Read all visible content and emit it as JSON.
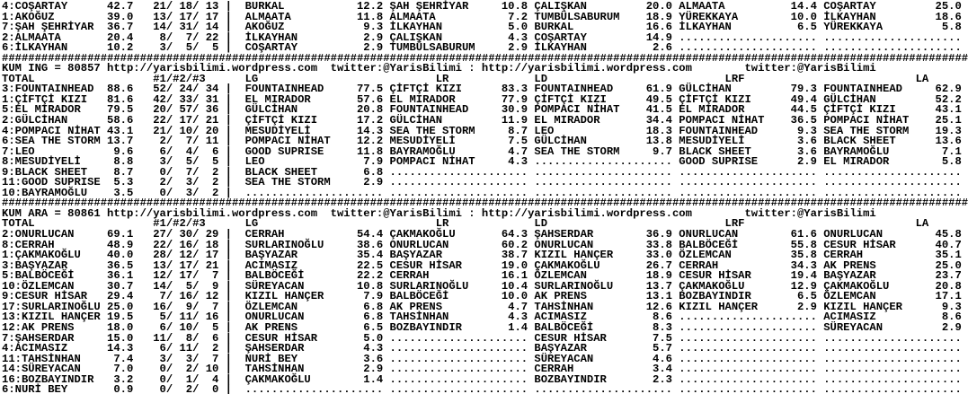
{
  "page": {
    "background": "#ffffff",
    "text_color": "#000000",
    "divider_char": "#"
  },
  "branding": {
    "url": "http://yarisbilimi.wordpress.com",
    "twitter": "twitter:@YarisBilimi",
    "separator": ":"
  },
  "column_headers": {
    "total": "TOTAL",
    "counts": "#1/#2/#3",
    "columns": [
      "LG",
      "LR",
      "LD",
      "LRF",
      "LA"
    ]
  },
  "sections": [
    {
      "name": "previous-race-partial",
      "title": null,
      "rows": [
        {
          "rank": "4",
          "name": "COŞARTAY",
          "total": "42.7",
          "counts": [
            "21",
            "18",
            "13"
          ],
          "lg": {
            "name": "BURKAL",
            "value": "12.2"
          },
          "lr": {
            "name": "ŞAH ŞEHRİYAR",
            "value": "10.8"
          },
          "ld": {
            "name": "ÇALIŞKAN",
            "value": "20.0"
          },
          "lrf": {
            "name": "ALMAATA",
            "value": "14.4"
          },
          "la": {
            "name": "COŞARTAY",
            "value": "25.0"
          }
        },
        {
          "rank": "1",
          "name": "AKOĞUZ",
          "total": "39.0",
          "counts": [
            "13",
            "17",
            "17"
          ],
          "lg": {
            "name": "ALMAATA",
            "value": "11.8"
          },
          "lr": {
            "name": "ALMAATA",
            "value": "7.2"
          },
          "ld": {
            "name": "TUMBÜLSABURUM",
            "value": "18.9"
          },
          "lrf": {
            "name": "YÜREKKAYA",
            "value": "10.0"
          },
          "la": {
            "name": "İLKAYHAN",
            "value": "18.6"
          }
        },
        {
          "rank": "7",
          "name": "ŞAH ŞEHRİYAR",
          "total": "36.7",
          "counts": [
            "14",
            "31",
            "14"
          ],
          "lg": {
            "name": "AKOĞUZ",
            "value": "9.3"
          },
          "lr": {
            "name": "İLKAYHAN",
            "value": "5.0"
          },
          "ld": {
            "name": "BURKAL",
            "value": "16.6"
          },
          "lrf": {
            "name": "İLKAYHAN",
            "value": "6.5"
          },
          "la": {
            "name": "YÜREKKAYA",
            "value": "5.8"
          }
        },
        {
          "rank": "2",
          "name": "ALMAATA",
          "total": "20.4",
          "counts": [
            "8",
            "7",
            "22"
          ],
          "lg": {
            "name": "İLKAYHAN",
            "value": "2.9"
          },
          "lr": {
            "name": "ÇALIŞKAN",
            "value": "4.3"
          },
          "ld": {
            "name": "COŞARTAY",
            "value": "14.9"
          },
          "lrf": null,
          "la": null
        },
        {
          "rank": "6",
          "name": "İLKAYHAN",
          "total": "10.2",
          "counts": [
            "3",
            "5",
            "5"
          ],
          "lg": {
            "name": "COŞARTAY",
            "value": "2.9"
          },
          "lr": {
            "name": "TUMBÜLSABURUM",
            "value": "2.9"
          },
          "ld": {
            "name": "İLKAYHAN",
            "value": "2.6"
          },
          "lrf": null,
          "la": null
        }
      ]
    },
    {
      "name": "kum-ing",
      "title": {
        "label": "KUM ING",
        "code": "80857"
      },
      "rows": [
        {
          "rank": "3",
          "name": "FOUNTAINHEAD",
          "total": "88.6",
          "counts": [
            "52",
            "24",
            "34"
          ],
          "lg": {
            "name": "FOUNTAINHEAD",
            "value": "77.5"
          },
          "lr": {
            "name": "ÇİFTÇİ KIZI",
            "value": "83.3"
          },
          "ld": {
            "name": "FOUNTAINHEAD",
            "value": "61.9"
          },
          "lrf": {
            "name": "GÜLCİHAN",
            "value": "79.3"
          },
          "la": {
            "name": "FOUNTAINHEAD",
            "value": "62.9"
          }
        },
        {
          "rank": "1",
          "name": "ÇİFTÇİ KIZI",
          "total": "81.6",
          "counts": [
            "42",
            "33",
            "31"
          ],
          "lg": {
            "name": "EL MIRADOR",
            "value": "57.6"
          },
          "lr": {
            "name": "EL MIRADOR",
            "value": "77.9"
          },
          "ld": {
            "name": "ÇİFTÇİ KIZI",
            "value": "49.5"
          },
          "lrf": {
            "name": "ÇİFTÇİ KIZI",
            "value": "49.4"
          },
          "la": {
            "name": "GÜLCİHAN",
            "value": "52.2"
          }
        },
        {
          "rank": "5",
          "name": "EL MIRADOR",
          "total": "79.5",
          "counts": [
            "20",
            "57",
            "36"
          ],
          "lg": {
            "name": "GÜLCİHAN",
            "value": "20.8"
          },
          "lr": {
            "name": "FOUNTAINHEAD",
            "value": "30.9"
          },
          "ld": {
            "name": "POMPACI NİHAT",
            "value": "41.5"
          },
          "lrf": {
            "name": "EL MIRADOR",
            "value": "44.5"
          },
          "la": {
            "name": "ÇİFTÇİ KIZI",
            "value": "43.1"
          }
        },
        {
          "rank": "2",
          "name": "GÜLCİHAN",
          "total": "58.6",
          "counts": [
            "22",
            "17",
            "21"
          ],
          "lg": {
            "name": "ÇİFTÇİ KIZI",
            "value": "17.2"
          },
          "lr": {
            "name": "GÜLCİHAN",
            "value": "11.9"
          },
          "ld": {
            "name": "EL MIRADOR",
            "value": "34.4"
          },
          "lrf": {
            "name": "POMPACI NİHAT",
            "value": "36.5"
          },
          "la": {
            "name": "POMPACI NİHAT",
            "value": "25.1"
          }
        },
        {
          "rank": "4",
          "name": "POMPACI NİHAT",
          "total": "43.1",
          "counts": [
            "21",
            "10",
            "20"
          ],
          "lg": {
            "name": "MESUDİYELİ",
            "value": "14.3"
          },
          "lr": {
            "name": "SEA THE STORM",
            "value": "8.7"
          },
          "ld": {
            "name": "LEO",
            "value": "18.3"
          },
          "lrf": {
            "name": "FOUNTAINHEAD",
            "value": "9.3"
          },
          "la": {
            "name": "SEA THE STORM",
            "value": "19.3"
          }
        },
        {
          "rank": "6",
          "name": "SEA THE STORM",
          "total": "13.7",
          "counts": [
            "2",
            "7",
            "11"
          ],
          "lg": {
            "name": "POMPACI NİHAT",
            "value": "12.2"
          },
          "lr": {
            "name": "MESUDİYELİ",
            "value": "7.5"
          },
          "ld": {
            "name": "GÜLCİHAN",
            "value": "13.8"
          },
          "lrf": {
            "name": "MESUDİYELİ",
            "value": "3.6"
          },
          "la": {
            "name": "BLACK SHEET",
            "value": "13.6"
          }
        },
        {
          "rank": "7",
          "name": "LEO",
          "total": "9.6",
          "counts": [
            "6",
            "4",
            "6"
          ],
          "lg": {
            "name": "GOOD SUPRISE",
            "value": "11.8"
          },
          "lr": {
            "name": "BAYRAMOĞLU",
            "value": "4.7"
          },
          "ld": {
            "name": "SEA THE STORM",
            "value": "9.7"
          },
          "lrf": {
            "name": "BLACK SHEET",
            "value": "3.6"
          },
          "la": {
            "name": "BAYRAMOĞLU",
            "value": "7.1"
          }
        },
        {
          "rank": "8",
          "name": "MESUDİYELİ",
          "total": "8.8",
          "counts": [
            "3",
            "5",
            "5"
          ],
          "lg": {
            "name": "LEO",
            "value": "7.9"
          },
          "lr": {
            "name": "POMPACI NİHAT",
            "value": "4.3"
          },
          "ld": null,
          "lrf": {
            "name": "GOOD SUPRISE",
            "value": "2.9"
          },
          "la": {
            "name": "EL MIRADOR",
            "value": "5.8"
          }
        },
        {
          "rank": "9",
          "name": "BLACK SHEET",
          "total": "8.7",
          "counts": [
            "0",
            "7",
            "2"
          ],
          "lg": {
            "name": "BLACK SHEET",
            "value": "6.8"
          },
          "lr": null,
          "ld": null,
          "lrf": null,
          "la": null
        },
        {
          "rank": "11",
          "name": "GOOD SUPRISE",
          "total": "5.3",
          "counts": [
            "2",
            "3",
            "2"
          ],
          "lg": {
            "name": "SEA THE STORM",
            "value": "2.9"
          },
          "lr": null,
          "ld": null,
          "lrf": null,
          "la": null
        },
        {
          "rank": "10",
          "name": "BAYRAMOĞLU",
          "total": "3.5",
          "counts": [
            "0",
            "3",
            "2"
          ],
          "lg": null,
          "lr": null,
          "ld": null,
          "lrf": null,
          "la": null
        }
      ]
    },
    {
      "name": "kum-ara",
      "title": {
        "label": "KUM ARA",
        "code": "80861"
      },
      "rows": [
        {
          "rank": "2",
          "name": "ONURLUCAN",
          "total": "69.1",
          "counts": [
            "27",
            "30",
            "29"
          ],
          "lg": {
            "name": "CERRAH",
            "value": "54.4"
          },
          "lr": {
            "name": "ÇAKMAKOĞLU",
            "value": "64.3"
          },
          "ld": {
            "name": "ŞAHSERDAR",
            "value": "36.9"
          },
          "lrf": {
            "name": "ONURLUCAN",
            "value": "61.6"
          },
          "la": {
            "name": "ONURLUCAN",
            "value": "45.8"
          }
        },
        {
          "rank": "8",
          "name": "CERRAH",
          "total": "48.9",
          "counts": [
            "22",
            "16",
            "18"
          ],
          "lg": {
            "name": "SURLARINOĞLU",
            "value": "38.6"
          },
          "lr": {
            "name": "ONURLUCAN",
            "value": "60.2"
          },
          "ld": {
            "name": "ONURLUCAN",
            "value": "33.8"
          },
          "lrf": {
            "name": "BALBÖCEĞİ",
            "value": "55.8"
          },
          "la": {
            "name": "CESUR HİSAR",
            "value": "40.7"
          }
        },
        {
          "rank": "1",
          "name": "ÇAKMAKOĞLU",
          "total": "40.0",
          "counts": [
            "28",
            "12",
            "17"
          ],
          "lg": {
            "name": "BAŞYAZAR",
            "value": "35.4"
          },
          "lr": {
            "name": "BAŞYAZAR",
            "value": "38.7"
          },
          "ld": {
            "name": "KIZIL HANÇER",
            "value": "33.0"
          },
          "lrf": {
            "name": "ÖZLEMCAN",
            "value": "35.8"
          },
          "la": {
            "name": "CERRAH",
            "value": "35.1"
          }
        },
        {
          "rank": "3",
          "name": "BAŞYAZAR",
          "total": "36.5",
          "counts": [
            "13",
            "17",
            "21"
          ],
          "lg": {
            "name": "ACIMASIZ",
            "value": "22.5"
          },
          "lr": {
            "name": "CESUR HİSAR",
            "value": "19.0"
          },
          "ld": {
            "name": "ÇAKMAKOĞLU",
            "value": "26.7"
          },
          "lrf": {
            "name": "CERRAH",
            "value": "34.3"
          },
          "la": {
            "name": "AK PRENS",
            "value": "25.0"
          }
        },
        {
          "rank": "5",
          "name": "BALBÖCEĞİ",
          "total": "36.1",
          "counts": [
            "12",
            "17",
            "7"
          ],
          "lg": {
            "name": "BALBÖCEĞİ",
            "value": "22.2"
          },
          "lr": {
            "name": "CERRAH",
            "value": "16.1"
          },
          "ld": {
            "name": "ÖZLEMCAN",
            "value": "18.9"
          },
          "lrf": {
            "name": "CESUR HİSAR",
            "value": "19.4"
          },
          "la": {
            "name": "BAŞYAZAR",
            "value": "23.7"
          }
        },
        {
          "rank": "10",
          "name": "ÖZLEMCAN",
          "total": "30.7",
          "counts": [
            "14",
            "5",
            "9"
          ],
          "lg": {
            "name": "SÜREYACAN",
            "value": "10.8"
          },
          "lr": {
            "name": "SURLARINOĞLU",
            "value": "10.4"
          },
          "ld": {
            "name": "SURLARINOĞLU",
            "value": "13.7"
          },
          "lrf": {
            "name": "ÇAKMAKOĞLU",
            "value": "12.9"
          },
          "la": {
            "name": "ÇAKMAKOĞLU",
            "value": "20.8"
          }
        },
        {
          "rank": "9",
          "name": "CESUR HİSAR",
          "total": "29.4",
          "counts": [
            "7",
            "16",
            "12"
          ],
          "lg": {
            "name": "KIZIL HANÇER",
            "value": "7.9"
          },
          "lr": {
            "name": "BALBÖCEĞİ",
            "value": "10.0"
          },
          "ld": {
            "name": "AK PRENS",
            "value": "13.1"
          },
          "lrf": {
            "name": "BOZBAYINDIR",
            "value": "6.5"
          },
          "la": {
            "name": "ÖZLEMCAN",
            "value": "17.1"
          }
        },
        {
          "rank": "17",
          "name": "SURLARINOĞLU",
          "total": "25.0",
          "counts": [
            "16",
            "9",
            "7"
          ],
          "lg": {
            "name": "ÖZLEMCAN",
            "value": "6.8"
          },
          "lr": {
            "name": "AK PRENS",
            "value": "4.7"
          },
          "ld": {
            "name": "TAHSİNHAN",
            "value": "12.6"
          },
          "lrf": {
            "name": "KIZIL HANÇER",
            "value": "2.9"
          },
          "la": {
            "name": "KIZIL HANÇER",
            "value": "9.3"
          }
        },
        {
          "rank": "13",
          "name": "KIZIL HANÇER",
          "total": "19.5",
          "counts": [
            "5",
            "11",
            "16"
          ],
          "lg": {
            "name": "ONURLUCAN",
            "value": "6.8"
          },
          "lr": {
            "name": "TAHSİNHAN",
            "value": "4.3"
          },
          "ld": {
            "name": "ACIMASIZ",
            "value": "8.6"
          },
          "lrf": null,
          "la": {
            "name": "ACIMASIZ",
            "value": "8.6"
          }
        },
        {
          "rank": "12",
          "name": "AK PRENS",
          "total": "18.0",
          "counts": [
            "6",
            "10",
            "5"
          ],
          "lg": {
            "name": "AK PRENS",
            "value": "6.5"
          },
          "lr": {
            "name": "BOZBAYINDIR",
            "value": "1.4"
          },
          "ld": {
            "name": "BALBÖCEĞİ",
            "value": "8.3"
          },
          "lrf": null,
          "la": {
            "name": "SÜREYACAN",
            "value": "2.9"
          }
        },
        {
          "rank": "7",
          "name": "ŞAHSERDAR",
          "total": "15.0",
          "counts": [
            "11",
            "8",
            "6"
          ],
          "lg": {
            "name": "CESUR HİSAR",
            "value": "5.0"
          },
          "lr": null,
          "ld": {
            "name": "CESUR HİSAR",
            "value": "7.5"
          },
          "lrf": null,
          "la": null
        },
        {
          "rank": "4",
          "name": "ACIMASIZ",
          "total": "14.3",
          "counts": [
            "6",
            "11",
            "2"
          ],
          "lg": {
            "name": "ŞAHSERDAR",
            "value": "4.3"
          },
          "lr": null,
          "ld": {
            "name": "BAŞYAZAR",
            "value": "5.7"
          },
          "lrf": null,
          "la": null
        },
        {
          "rank": "11",
          "name": "TAHSİNHAN",
          "total": "7.4",
          "counts": [
            "3",
            "3",
            "7"
          ],
          "lg": {
            "name": "NURİ BEY",
            "value": "3.6"
          },
          "lr": null,
          "ld": {
            "name": "SÜREYACAN",
            "value": "4.6"
          },
          "lrf": null,
          "la": null
        },
        {
          "rank": "14",
          "name": "SÜREYACAN",
          "total": "7.0",
          "counts": [
            "0",
            "2",
            "10"
          ],
          "lg": {
            "name": "TAHSİNHAN",
            "value": "2.9"
          },
          "lr": null,
          "ld": {
            "name": "CERRAH",
            "value": "3.4"
          },
          "lrf": null,
          "la": null
        },
        {
          "rank": "16",
          "name": "BOZBAYINDIR",
          "total": "3.2",
          "counts": [
            "0",
            "1",
            "4"
          ],
          "lg": {
            "name": "ÇAKMAKOĞLU",
            "value": "1.4"
          },
          "lr": null,
          "ld": {
            "name": "BOZBAYINDIR",
            "value": "2.3"
          },
          "lrf": null,
          "la": null
        },
        {
          "rank": "6",
          "name": "NURİ BEY",
          "total": "0.9",
          "counts": [
            "0",
            "2",
            "0"
          ],
          "lg": null,
          "lr": null,
          "ld": null,
          "lrf": null,
          "la": null
        }
      ]
    }
  ]
}
